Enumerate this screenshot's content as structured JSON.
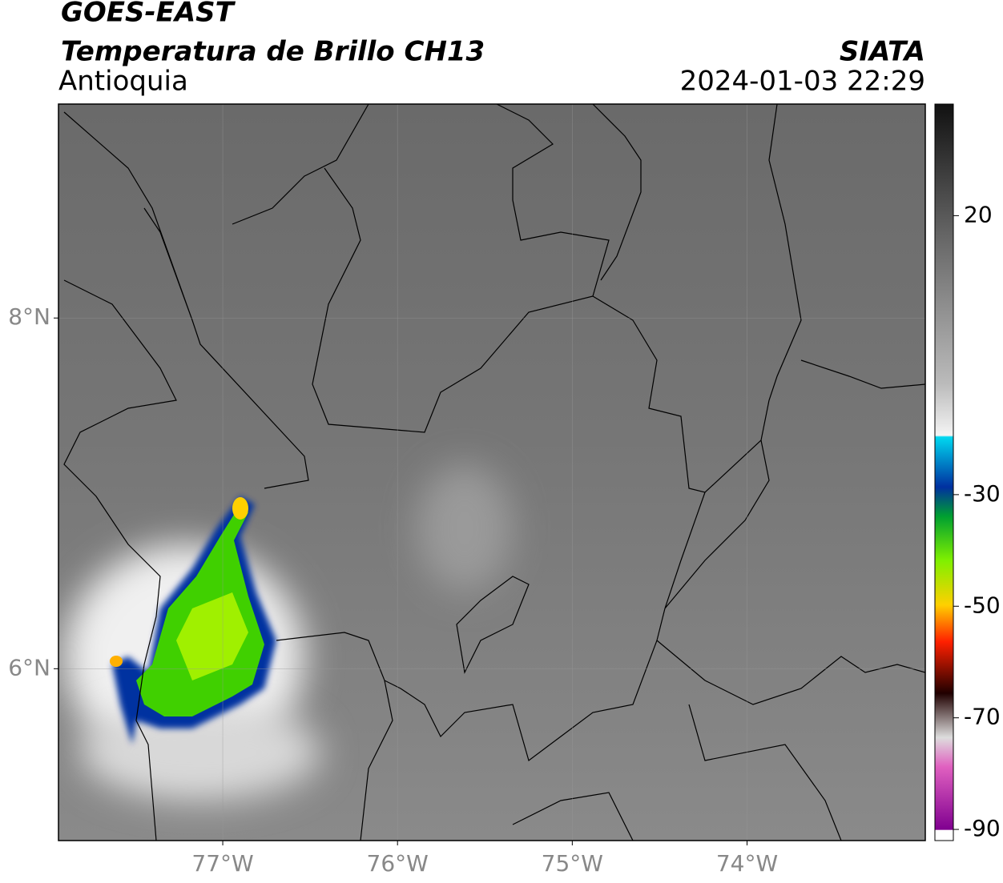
{
  "header": {
    "title": "GOES-EAST",
    "subtitle": "Temperatura de Brillo CH13",
    "region": "Antioquia",
    "source": "SIATA",
    "datetime": "2024-01-03 22:29"
  },
  "map": {
    "xlim": [
      -77.94,
      -72.98
    ],
    "ylim": [
      5.02,
      9.22
    ],
    "xticks": [
      {
        "value": -77,
        "label": "77°W"
      },
      {
        "value": -76,
        "label": "76°W"
      },
      {
        "value": -75,
        "label": "75°W"
      },
      {
        "value": -74,
        "label": "74°W"
      }
    ],
    "yticks": [
      {
        "value": 8,
        "label": "8°N"
      },
      {
        "value": 6,
        "label": "6°N"
      }
    ],
    "grid": true
  },
  "colorbar": {
    "lim": [
      -92,
      40
    ],
    "ticks": [
      20,
      -30,
      -50,
      -70,
      -90
    ]
  }
}
